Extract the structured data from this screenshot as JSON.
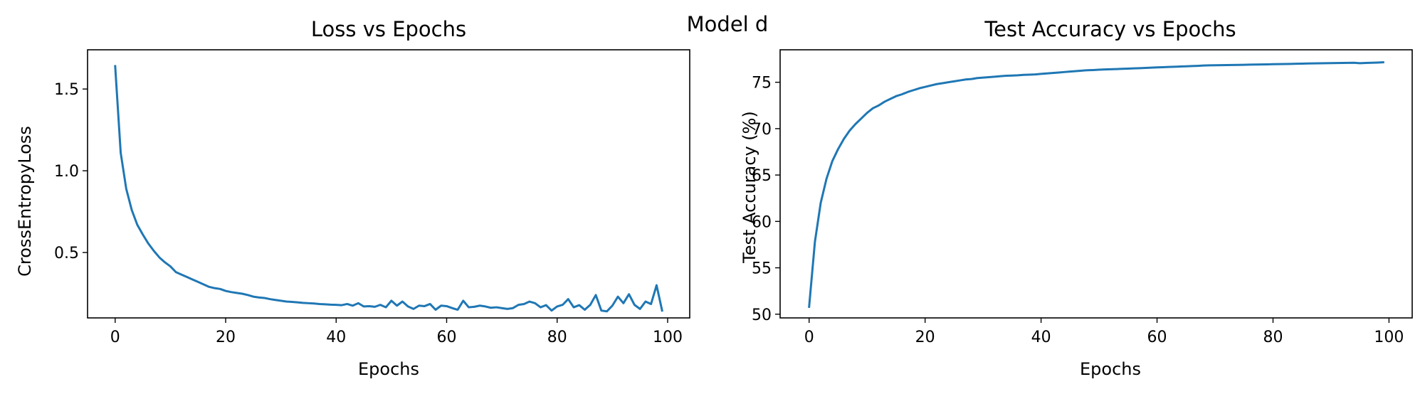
{
  "figure": {
    "suptitle": "Model d",
    "line_color": "#1f77b4"
  },
  "chart_data": [
    {
      "type": "line",
      "title": "Loss vs Epochs",
      "xlabel": "Epochs",
      "ylabel": "CrossEntropyLoss",
      "xlim": [
        -5,
        104
      ],
      "ylim": [
        0.1,
        1.74
      ],
      "xticks": [
        0,
        20,
        40,
        60,
        80,
        100
      ],
      "yticks": [
        0.5,
        1.0,
        1.5
      ],
      "ytick_labels": [
        "0.5",
        "1.0",
        "1.5"
      ],
      "grid": false,
      "series": [
        {
          "values": [
            1.64,
            1.11,
            0.89,
            0.76,
            0.67,
            0.61,
            0.555,
            0.51,
            0.47,
            0.44,
            0.415,
            0.38,
            0.365,
            0.35,
            0.335,
            0.32,
            0.305,
            0.29,
            0.282,
            0.277,
            0.265,
            0.258,
            0.253,
            0.248,
            0.24,
            0.23,
            0.225,
            0.222,
            0.215,
            0.21,
            0.205,
            0.2,
            0.198,
            0.195,
            0.192,
            0.19,
            0.188,
            0.185,
            0.183,
            0.181,
            0.18,
            0.178,
            0.185,
            0.175,
            0.19,
            0.17,
            0.172,
            0.168,
            0.18,
            0.165,
            0.205,
            0.175,
            0.2,
            0.17,
            0.155,
            0.175,
            0.172,
            0.185,
            0.15,
            0.175,
            0.172,
            0.16,
            0.15,
            0.205,
            0.165,
            0.168,
            0.175,
            0.17,
            0.162,
            0.165,
            0.16,
            0.155,
            0.16,
            0.18,
            0.185,
            0.2,
            0.19,
            0.165,
            0.178,
            0.145,
            0.17,
            0.18,
            0.215,
            0.165,
            0.178,
            0.15,
            0.18,
            0.24,
            0.145,
            0.14,
            0.175,
            0.23,
            0.19,
            0.245,
            0.18,
            0.155,
            0.2,
            0.185,
            0.3,
            0.145
          ]
        }
      ]
    },
    {
      "type": "line",
      "title": "Test Accuracy vs Epochs",
      "xlabel": "Epochs",
      "ylabel": "Test Accuracy (%)",
      "xlim": [
        -5,
        104
      ],
      "ylim": [
        49.6,
        78.5
      ],
      "xticks": [
        0,
        20,
        40,
        60,
        80,
        100
      ],
      "yticks": [
        50,
        55,
        60,
        65,
        70,
        75
      ],
      "ytick_labels": [
        "50",
        "55",
        "60",
        "65",
        "70",
        "75"
      ],
      "grid": false,
      "series": [
        {
          "values": [
            50.8,
            57.8,
            62.0,
            64.6,
            66.5,
            67.8,
            68.9,
            69.8,
            70.5,
            71.1,
            71.7,
            72.2,
            72.5,
            72.9,
            73.2,
            73.5,
            73.7,
            73.95,
            74.15,
            74.35,
            74.5,
            74.65,
            74.8,
            74.9,
            75.0,
            75.1,
            75.2,
            75.3,
            75.35,
            75.45,
            75.5,
            75.55,
            75.6,
            75.65,
            75.7,
            75.72,
            75.75,
            75.8,
            75.82,
            75.85,
            75.9,
            75.95,
            76.0,
            76.05,
            76.1,
            76.15,
            76.2,
            76.25,
            76.3,
            76.32,
            76.35,
            76.38,
            76.4,
            76.42,
            76.45,
            76.47,
            76.5,
            76.52,
            76.55,
            76.57,
            76.6,
            76.62,
            76.65,
            76.67,
            76.7,
            76.72,
            76.75,
            76.77,
            76.8,
            76.82,
            76.83,
            76.84,
            76.85,
            76.86,
            76.87,
            76.88,
            76.9,
            76.91,
            76.92,
            76.93,
            76.95,
            76.96,
            76.97,
            76.98,
            77.0,
            77.01,
            77.02,
            77.03,
            77.04,
            77.05,
            77.06,
            77.07,
            77.08,
            77.09,
            77.1,
            77.05,
            77.08,
            77.1,
            77.12,
            77.15
          ]
        }
      ]
    }
  ]
}
